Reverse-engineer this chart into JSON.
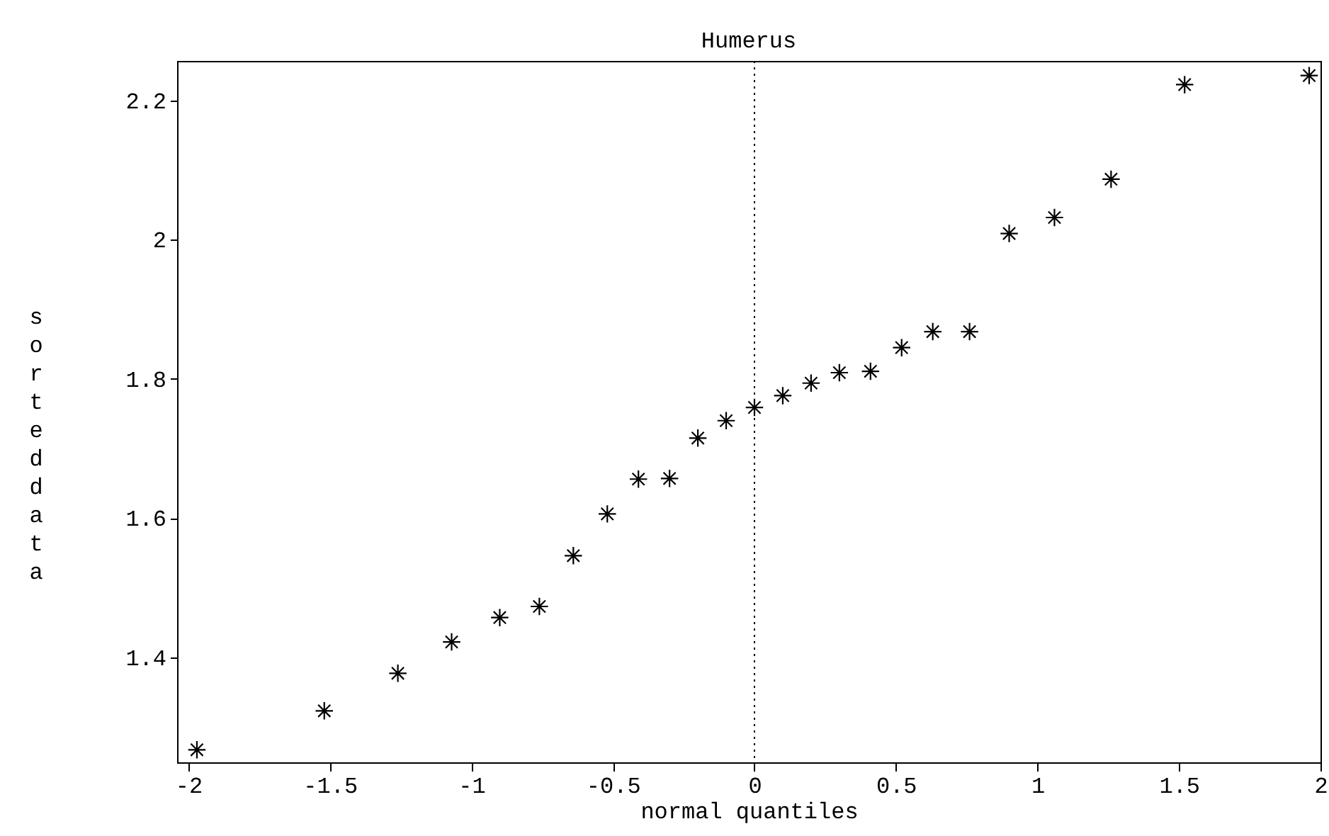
{
  "chart_data": {
    "type": "scatter",
    "title": "Humerus",
    "xlabel": "normal quantiles",
    "ylabel": "sorted data",
    "x": [
      -1.97,
      -1.52,
      -1.26,
      -1.07,
      -0.9,
      -0.76,
      -0.64,
      -0.52,
      -0.41,
      -0.3,
      -0.2,
      -0.1,
      0.0,
      0.1,
      0.2,
      0.3,
      0.41,
      0.52,
      0.63,
      0.76,
      0.9,
      1.06,
      1.26,
      1.52,
      1.96
    ],
    "series": [
      {
        "color": "#000000",
        "values": [
          1.267,
          1.323,
          1.377,
          1.422,
          1.457,
          1.473,
          1.546,
          1.606,
          1.656,
          1.657,
          1.715,
          1.74,
          1.759,
          1.776,
          1.794,
          1.809,
          1.811,
          1.845,
          1.868,
          1.868,
          2.009,
          2.032,
          2.087,
          2.223,
          2.236
        ]
      }
    ],
    "xlim": [
      -2.04,
      2
    ],
    "ylim": [
      1.249,
      2.257
    ],
    "xticks": [
      -2,
      -1.5,
      -1,
      -0.5,
      0,
      0.5,
      1,
      1.5,
      2
    ],
    "yticks": [
      1.4,
      1.6,
      1.8,
      2,
      2.2
    ],
    "ref_lines": [
      {
        "axis": "x",
        "value": 0,
        "line_style": "dotted",
        "color": "#000000"
      }
    ],
    "marker": "cross",
    "grid": false
  }
}
